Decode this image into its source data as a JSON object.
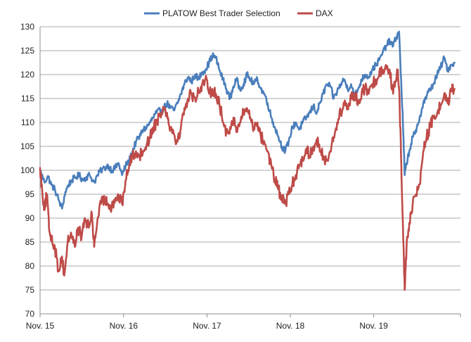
{
  "chart_data": {
    "type": "line",
    "title": "",
    "xlabel": "",
    "ylabel": "",
    "ylim": [
      70,
      130
    ],
    "yticks": [
      70,
      75,
      80,
      85,
      90,
      95,
      100,
      105,
      110,
      115,
      120,
      125,
      130
    ],
    "xlim": [
      "2015-11-01",
      "2020-11-15"
    ],
    "xticks": [
      {
        "date": "2015-11-01",
        "label": "Nov. 15"
      },
      {
        "date": "2016-11-01",
        "label": "Nov. 16"
      },
      {
        "date": "2017-11-01",
        "label": "Nov. 17"
      },
      {
        "date": "2018-11-01",
        "label": "Nov. 18"
      },
      {
        "date": "2019-11-01",
        "label": "Nov. 19"
      }
    ],
    "grid": true,
    "legend_position": "top",
    "series": [
      {
        "name": "PLATOW Best Trader Selection",
        "color": "#4a7ebb",
        "points": [
          [
            "2015-11-01",
            100.0
          ],
          [
            "2015-11-20",
            97.5
          ],
          [
            "2015-12-05",
            98.8
          ],
          [
            "2015-12-20",
            97.0
          ],
          [
            "2016-01-05",
            96.0
          ],
          [
            "2016-01-20",
            94.0
          ],
          [
            "2016-02-05",
            92.0
          ],
          [
            "2016-02-20",
            95.5
          ],
          [
            "2016-03-05",
            97.0
          ],
          [
            "2016-03-20",
            98.0
          ],
          [
            "2016-04-05",
            98.5
          ],
          [
            "2016-04-20",
            99.0
          ],
          [
            "2016-05-05",
            98.0
          ],
          [
            "2016-05-20",
            98.5
          ],
          [
            "2016-06-05",
            99.0
          ],
          [
            "2016-06-25",
            97.5
          ],
          [
            "2016-07-10",
            99.0
          ],
          [
            "2016-07-25",
            100.0
          ],
          [
            "2016-08-10",
            100.5
          ],
          [
            "2016-08-25",
            101.0
          ],
          [
            "2016-09-10",
            100.0
          ],
          [
            "2016-09-25",
            100.5
          ],
          [
            "2016-10-10",
            101.5
          ],
          [
            "2016-10-25",
            99.0
          ],
          [
            "2016-11-10",
            101.0
          ],
          [
            "2016-11-25",
            102.0
          ],
          [
            "2016-12-10",
            104.0
          ],
          [
            "2016-12-25",
            106.0
          ],
          [
            "2017-01-10",
            107.0
          ],
          [
            "2017-01-25",
            108.5
          ],
          [
            "2017-02-10",
            109.0
          ],
          [
            "2017-02-25",
            110.0
          ],
          [
            "2017-03-10",
            111.0
          ],
          [
            "2017-03-25",
            112.0
          ],
          [
            "2017-04-10",
            112.5
          ],
          [
            "2017-04-25",
            113.0
          ],
          [
            "2017-05-10",
            114.0
          ],
          [
            "2017-05-25",
            113.0
          ],
          [
            "2017-06-10",
            112.5
          ],
          [
            "2017-06-25",
            114.0
          ],
          [
            "2017-07-10",
            116.0
          ],
          [
            "2017-07-25",
            118.0
          ],
          [
            "2017-08-10",
            119.5
          ],
          [
            "2017-08-25",
            118.5
          ],
          [
            "2017-09-10",
            120.0
          ],
          [
            "2017-09-25",
            119.0
          ],
          [
            "2017-10-10",
            120.5
          ],
          [
            "2017-10-25",
            121.0
          ],
          [
            "2017-11-10",
            122.5
          ],
          [
            "2017-11-25",
            124.0
          ],
          [
            "2017-12-10",
            123.5
          ],
          [
            "2017-12-25",
            121.0
          ],
          [
            "2018-01-10",
            119.0
          ],
          [
            "2018-01-25",
            117.0
          ],
          [
            "2018-02-10",
            115.0
          ],
          [
            "2018-02-25",
            117.5
          ],
          [
            "2018-03-10",
            119.0
          ],
          [
            "2018-03-25",
            117.0
          ],
          [
            "2018-04-10",
            118.0
          ],
          [
            "2018-04-25",
            120.0
          ],
          [
            "2018-05-10",
            119.0
          ],
          [
            "2018-05-25",
            118.0
          ],
          [
            "2018-06-10",
            119.0
          ],
          [
            "2018-06-25",
            117.0
          ],
          [
            "2018-07-10",
            116.0
          ],
          [
            "2018-07-25",
            114.0
          ],
          [
            "2018-08-10",
            111.0
          ],
          [
            "2018-08-25",
            109.0
          ],
          [
            "2018-09-10",
            107.0
          ],
          [
            "2018-09-25",
            105.0
          ],
          [
            "2018-10-10",
            104.0
          ],
          [
            "2018-10-25",
            106.0
          ],
          [
            "2018-11-10",
            109.0
          ],
          [
            "2018-11-25",
            110.0
          ],
          [
            "2018-12-10",
            108.5
          ],
          [
            "2018-12-25",
            110.0
          ],
          [
            "2019-01-10",
            111.0
          ],
          [
            "2019-01-25",
            112.0
          ],
          [
            "2019-02-10",
            113.5
          ],
          [
            "2019-02-25",
            112.0
          ],
          [
            "2019-03-10",
            114.0
          ],
          [
            "2019-03-25",
            116.0
          ],
          [
            "2019-04-10",
            118.0
          ],
          [
            "2019-04-25",
            117.5
          ],
          [
            "2019-05-10",
            115.0
          ],
          [
            "2019-05-25",
            116.5
          ],
          [
            "2019-06-10",
            118.0
          ],
          [
            "2019-06-25",
            119.0
          ],
          [
            "2019-07-10",
            117.0
          ],
          [
            "2019-07-25",
            118.0
          ],
          [
            "2019-08-10",
            115.5
          ],
          [
            "2019-08-25",
            117.0
          ],
          [
            "2019-09-10",
            119.0
          ],
          [
            "2019-09-25",
            120.0
          ],
          [
            "2019-10-10",
            119.5
          ],
          [
            "2019-10-25",
            121.0
          ],
          [
            "2019-11-10",
            122.0
          ],
          [
            "2019-11-25",
            123.0
          ],
          [
            "2019-12-10",
            124.5
          ],
          [
            "2019-12-25",
            126.0
          ],
          [
            "2020-01-10",
            127.0
          ],
          [
            "2020-01-25",
            126.0
          ],
          [
            "2020-02-10",
            128.0
          ],
          [
            "2020-02-20",
            129.0
          ],
          [
            "2020-02-28",
            120.0
          ],
          [
            "2020-03-08",
            110.0
          ],
          [
            "2020-03-16",
            99.0
          ],
          [
            "2020-03-24",
            101.5
          ],
          [
            "2020-04-05",
            104.0
          ],
          [
            "2020-04-20",
            107.0
          ],
          [
            "2020-05-05",
            108.0
          ],
          [
            "2020-05-20",
            111.0
          ],
          [
            "2020-06-05",
            114.0
          ],
          [
            "2020-06-20",
            115.5
          ],
          [
            "2020-07-05",
            117.0
          ],
          [
            "2020-07-20",
            118.0
          ],
          [
            "2020-08-05",
            120.0
          ],
          [
            "2020-08-20",
            121.5
          ],
          [
            "2020-09-05",
            123.5
          ],
          [
            "2020-09-20",
            121.0
          ],
          [
            "2020-10-05",
            122.0
          ],
          [
            "2020-10-20",
            122.5
          ]
        ]
      },
      {
        "name": "DAX",
        "color": "#be4b48",
        "points": [
          [
            "2015-11-01",
            100.5
          ],
          [
            "2015-11-10",
            96.0
          ],
          [
            "2015-11-20",
            92.0
          ],
          [
            "2015-12-01",
            95.0
          ],
          [
            "2015-12-10",
            88.0
          ],
          [
            "2015-12-20",
            86.0
          ],
          [
            "2016-01-05",
            84.0
          ],
          [
            "2016-01-20",
            79.0
          ],
          [
            "2016-02-05",
            82.0
          ],
          [
            "2016-02-15",
            78.0
          ],
          [
            "2016-03-01",
            85.0
          ],
          [
            "2016-03-15",
            87.0
          ],
          [
            "2016-04-01",
            84.0
          ],
          [
            "2016-04-15",
            88.0
          ],
          [
            "2016-05-01",
            86.0
          ],
          [
            "2016-05-15",
            90.0
          ],
          [
            "2016-06-01",
            88.0
          ],
          [
            "2016-06-15",
            91.0
          ],
          [
            "2016-06-25",
            84.0
          ],
          [
            "2016-07-10",
            90.0
          ],
          [
            "2016-07-25",
            93.0
          ],
          [
            "2016-08-10",
            94.0
          ],
          [
            "2016-08-25",
            93.0
          ],
          [
            "2016-09-10",
            92.5
          ],
          [
            "2016-09-25",
            94.0
          ],
          [
            "2016-10-10",
            94.5
          ],
          [
            "2016-10-25",
            93.0
          ],
          [
            "2016-11-10",
            98.0
          ],
          [
            "2016-11-25",
            101.0
          ],
          [
            "2016-12-10",
            103.0
          ],
          [
            "2016-12-25",
            104.0
          ],
          [
            "2017-01-10",
            103.0
          ],
          [
            "2017-01-25",
            104.0
          ],
          [
            "2017-02-10",
            105.5
          ],
          [
            "2017-02-25",
            107.0
          ],
          [
            "2017-03-10",
            109.0
          ],
          [
            "2017-03-25",
            110.0
          ],
          [
            "2017-04-10",
            112.0
          ],
          [
            "2017-04-25",
            113.0
          ],
          [
            "2017-05-10",
            112.0
          ],
          [
            "2017-05-25",
            109.0
          ],
          [
            "2017-06-10",
            107.5
          ],
          [
            "2017-06-25",
            106.0
          ],
          [
            "2017-07-10",
            109.0
          ],
          [
            "2017-07-25",
            113.0
          ],
          [
            "2017-08-10",
            115.0
          ],
          [
            "2017-08-25",
            116.0
          ],
          [
            "2017-09-10",
            115.0
          ],
          [
            "2017-09-25",
            116.5
          ],
          [
            "2017-10-10",
            118.0
          ],
          [
            "2017-10-25",
            119.0
          ],
          [
            "2017-11-10",
            116.0
          ],
          [
            "2017-11-25",
            117.0
          ],
          [
            "2017-12-10",
            116.0
          ],
          [
            "2017-12-25",
            114.0
          ],
          [
            "2018-01-10",
            110.0
          ],
          [
            "2018-01-25",
            108.0
          ],
          [
            "2018-02-10",
            109.0
          ],
          [
            "2018-02-25",
            111.0
          ],
          [
            "2018-03-10",
            108.0
          ],
          [
            "2018-03-25",
            110.0
          ],
          [
            "2018-04-10",
            112.0
          ],
          [
            "2018-04-25",
            113.0
          ],
          [
            "2018-05-10",
            111.0
          ],
          [
            "2018-05-25",
            109.0
          ],
          [
            "2018-06-10",
            110.0
          ],
          [
            "2018-06-25",
            107.0
          ],
          [
            "2018-07-10",
            106.0
          ],
          [
            "2018-07-25",
            104.0
          ],
          [
            "2018-08-10",
            101.0
          ],
          [
            "2018-08-25",
            98.0
          ],
          [
            "2018-09-10",
            96.0
          ],
          [
            "2018-09-25",
            94.0
          ],
          [
            "2018-10-10",
            93.0
          ],
          [
            "2018-10-25",
            95.0
          ],
          [
            "2018-11-10",
            97.0
          ],
          [
            "2018-11-25",
            99.0
          ],
          [
            "2018-12-10",
            101.0
          ],
          [
            "2018-12-25",
            102.5
          ],
          [
            "2019-01-10",
            104.5
          ],
          [
            "2019-01-25",
            103.0
          ],
          [
            "2019-02-10",
            105.0
          ],
          [
            "2019-02-25",
            106.5
          ],
          [
            "2019-03-10",
            104.0
          ],
          [
            "2019-03-25",
            103.0
          ],
          [
            "2019-04-10",
            102.0
          ],
          [
            "2019-04-25",
            104.0
          ],
          [
            "2019-05-10",
            107.0
          ],
          [
            "2019-05-25",
            110.0
          ],
          [
            "2019-06-10",
            112.0
          ],
          [
            "2019-06-25",
            114.0
          ],
          [
            "2019-07-10",
            113.0
          ],
          [
            "2019-07-25",
            115.0
          ],
          [
            "2019-08-10",
            116.0
          ],
          [
            "2019-08-25",
            114.0
          ],
          [
            "2019-09-10",
            116.5
          ],
          [
            "2019-09-25",
            117.0
          ],
          [
            "2019-10-10",
            116.0
          ],
          [
            "2019-10-25",
            118.0
          ],
          [
            "2019-11-10",
            119.0
          ],
          [
            "2019-11-25",
            120.0
          ],
          [
            "2019-12-10",
            121.0
          ],
          [
            "2019-12-25",
            122.0
          ],
          [
            "2020-01-10",
            121.0
          ],
          [
            "2020-01-25",
            116.0
          ],
          [
            "2020-02-05",
            118.5
          ],
          [
            "2020-02-15",
            121.0
          ],
          [
            "2020-02-22",
            115.0
          ],
          [
            "2020-03-01",
            101.0
          ],
          [
            "2020-03-08",
            89.0
          ],
          [
            "2020-03-16",
            75.0
          ],
          [
            "2020-03-24",
            84.0
          ],
          [
            "2020-04-05",
            89.0
          ],
          [
            "2020-04-20",
            93.0
          ],
          [
            "2020-05-05",
            95.0
          ],
          [
            "2020-05-20",
            97.0
          ],
          [
            "2020-06-05",
            104.0
          ],
          [
            "2020-06-20",
            107.0
          ],
          [
            "2020-07-05",
            109.0
          ],
          [
            "2020-07-20",
            111.0
          ],
          [
            "2020-08-05",
            112.0
          ],
          [
            "2020-08-20",
            113.5
          ],
          [
            "2020-09-05",
            116.0
          ],
          [
            "2020-09-20",
            114.0
          ],
          [
            "2020-10-05",
            116.5
          ],
          [
            "2020-10-20",
            117.0
          ]
        ]
      }
    ]
  }
}
